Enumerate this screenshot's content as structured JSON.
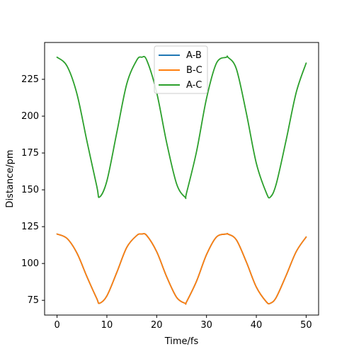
{
  "chart_data": {
    "type": "line",
    "title": "",
    "xlabel": "Time/fs",
    "ylabel": "Distance/pm",
    "xlim": [
      -2.5,
      52.5
    ],
    "ylim": [
      65,
      250
    ],
    "x_ticks": [
      0,
      10,
      20,
      30,
      40,
      50
    ],
    "y_ticks": [
      75,
      100,
      125,
      150,
      175,
      200,
      225
    ],
    "x_tick_labels": [
      "0",
      "10",
      "20",
      "30",
      "40",
      "50"
    ],
    "y_tick_labels": [
      "75",
      "100",
      "125",
      "150",
      "175",
      "200",
      "225"
    ],
    "grid": false,
    "legend": {
      "placement": "upper-center",
      "entries": [
        "A-B",
        "B-C",
        "A-C"
      ]
    },
    "series": [
      {
        "name": "A-B",
        "color": "#1f77b4",
        "x": [
          0,
          2,
          4,
          6,
          8,
          8.5,
          10,
          12,
          14,
          16,
          17,
          18,
          20,
          22,
          24,
          25.7,
          26,
          28,
          30,
          32,
          34,
          34.3,
          36,
          38,
          40,
          42,
          42.8,
          44,
          46,
          48,
          50
        ],
        "y": [
          120,
          117,
          107,
          91,
          76,
          73,
          78,
          94,
          111,
          119,
          120,
          119,
          108,
          91,
          77,
          73,
          74,
          88,
          106,
          118,
          120,
          120,
          116,
          101,
          84,
          74,
          73,
          77,
          92,
          108,
          118
        ]
      },
      {
        "name": "B-C",
        "color": "#ff7f0e",
        "x": [
          0,
          2,
          4,
          6,
          8,
          8.5,
          10,
          12,
          14,
          16,
          17,
          18,
          20,
          22,
          24,
          25.7,
          26,
          28,
          30,
          32,
          34,
          34.3,
          36,
          38,
          40,
          42,
          42.8,
          44,
          46,
          48,
          50
        ],
        "y": [
          120,
          117,
          107,
          91,
          76,
          73,
          78,
          94,
          111,
          119,
          120,
          119,
          108,
          91,
          77,
          73,
          74,
          88,
          106,
          118,
          120,
          120,
          116,
          101,
          84,
          74,
          73,
          77,
          92,
          108,
          118
        ]
      },
      {
        "name": "A-C",
        "color": "#2ca02c",
        "x": [
          0,
          2,
          4,
          6,
          8,
          8.5,
          10,
          12,
          14,
          16,
          17,
          18,
          20,
          22,
          24,
          25.7,
          26,
          28,
          30,
          32,
          34,
          34.3,
          36,
          38,
          40,
          42,
          42.8,
          44,
          46,
          48,
          50
        ],
        "y": [
          240,
          234,
          215,
          183,
          152,
          145,
          156,
          189,
          222,
          238,
          240,
          238,
          216,
          182,
          154,
          145,
          148,
          176,
          212,
          236,
          240,
          240,
          232,
          202,
          168,
          148,
          145,
          154,
          184,
          216,
          236
        ]
      }
    ]
  }
}
